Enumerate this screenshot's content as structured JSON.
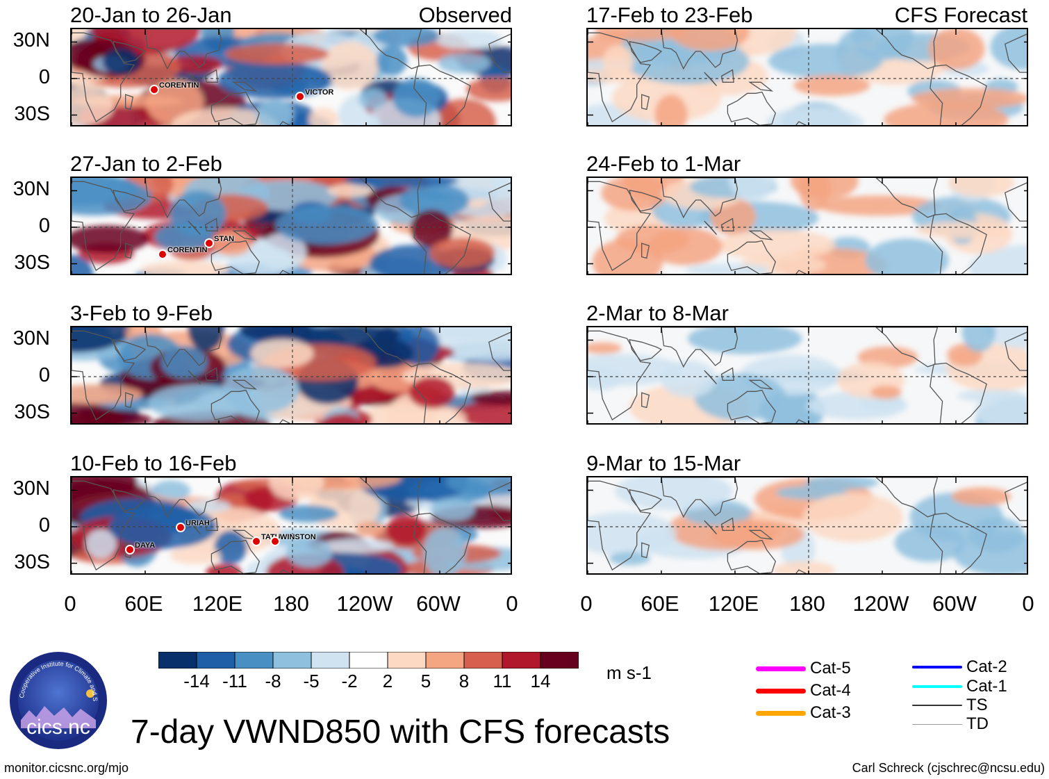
{
  "chart_data": {
    "type": "heatmap",
    "title": "7-day VWND850 with CFS forecasts",
    "units": "m s-1",
    "x_ticks": [
      "0",
      "60E",
      "120E",
      "180",
      "120W",
      "60W",
      "0"
    ],
    "y_ticks": [
      "30N",
      "0",
      "30S"
    ],
    "colorbar": {
      "labels": [
        "-14",
        "-11",
        "-8",
        "-5",
        "-2",
        "2",
        "5",
        "8",
        "11",
        "14"
      ],
      "colors": [
        "#08306b",
        "#1f5fa8",
        "#4a8fc4",
        "#8fc0de",
        "#cfe3f1",
        "#ffffff",
        "#fdd9c4",
        "#f4a582",
        "#d6604d",
        "#b2182b",
        "#67001f"
      ]
    },
    "columns": [
      {
        "tag": "Observed",
        "panels": [
          {
            "title": "20-Jan to 26-Jan",
            "storms": [
              "CORENTIN",
              "VICTOR"
            ]
          },
          {
            "title": "27-Jan to 2-Feb",
            "storms": [
              "STAN",
              "CORENTIN"
            ]
          },
          {
            "title": "3-Feb to 9-Feb",
            "storms": []
          },
          {
            "title": "10-Feb to 16-Feb",
            "storms": [
              "URIAH",
              "DAYA",
              "TATU",
              "WINSTON"
            ]
          }
        ]
      },
      {
        "tag": "CFS Forecast",
        "panels": [
          {
            "title": "17-Feb to 23-Feb",
            "storms": []
          },
          {
            "title": "24-Feb to 1-Mar",
            "storms": []
          },
          {
            "title": "2-Mar to 8-Mar",
            "storms": []
          },
          {
            "title": "9-Mar to 15-Mar",
            "storms": []
          }
        ]
      }
    ],
    "legend": [
      {
        "label": "Cat-5",
        "color": "#ff00ff"
      },
      {
        "label": "Cat-4",
        "color": "#ff0000"
      },
      {
        "label": "Cat-3",
        "color": "#ffa500"
      },
      {
        "label": "Cat-2",
        "color": "#0000ff"
      },
      {
        "label": "Cat-1",
        "color": "#00ffff"
      },
      {
        "label": "TS",
        "color": "#333333"
      },
      {
        "label": "TD",
        "color": "#999999"
      }
    ]
  },
  "logo": {
    "text": "cics.nc",
    "ring_text": "Cooperative Institute for Climate and Satellites"
  },
  "footer": {
    "left": "monitor.cicsnc.org/mjo",
    "right": "Carl Schreck (cjschrec@ncsu.edu)"
  }
}
